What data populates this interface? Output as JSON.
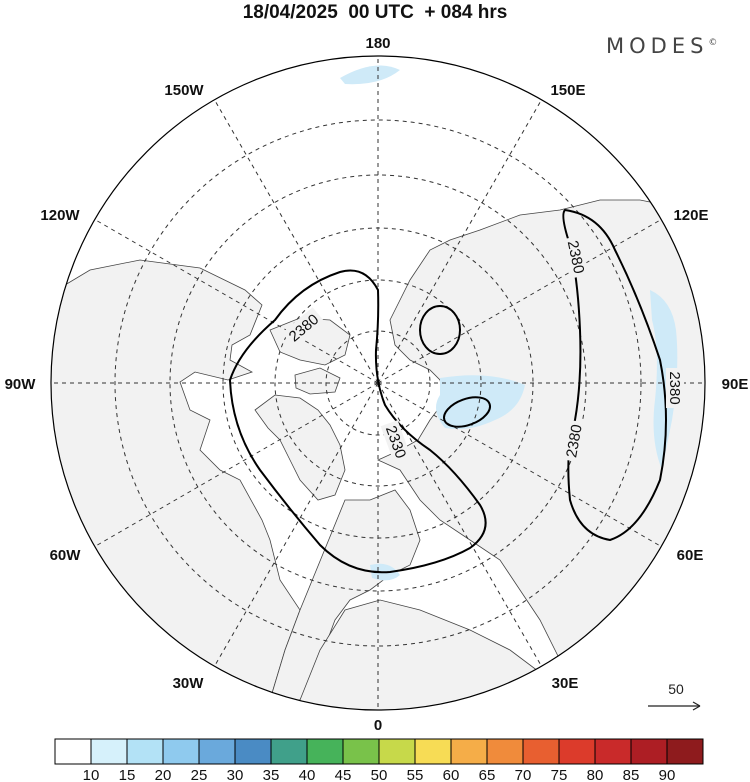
{
  "header": {
    "title": "18/04/2025  00 UTC  + 084 hrs",
    "brand": "MODES",
    "brand_mark": "©"
  },
  "map": {
    "projection": "north-polar-stereographic",
    "longitude_labels": [
      "180",
      "150E",
      "120E",
      "90E",
      "60E",
      "30E",
      "0",
      "30W",
      "60W",
      "90W",
      "120W",
      "150W"
    ],
    "contours": [
      {
        "value": "2380",
        "labels": [
          "2380",
          "2380",
          "2380",
          "2380"
        ]
      },
      {
        "value": "2330",
        "labels": [
          "2330"
        ]
      }
    ],
    "vector_reference": "50"
  },
  "colorbar": {
    "ticks": [
      "10",
      "15",
      "20",
      "25",
      "30",
      "35",
      "40",
      "45",
      "50",
      "55",
      "60",
      "65",
      "70",
      "75",
      "80",
      "85",
      "90"
    ],
    "colors": [
      "#ffffff",
      "#d6f1fb",
      "#b3e2f6",
      "#8fcaee",
      "#6aa9dc",
      "#4a8bc4",
      "#40a08a",
      "#46b35a",
      "#79c24a",
      "#c7d94a",
      "#f7dc55",
      "#f5ad48",
      "#f08b3b",
      "#e85f30",
      "#dc3b2b",
      "#c92a2a",
      "#ad1e24",
      "#8e1b1d"
    ]
  }
}
